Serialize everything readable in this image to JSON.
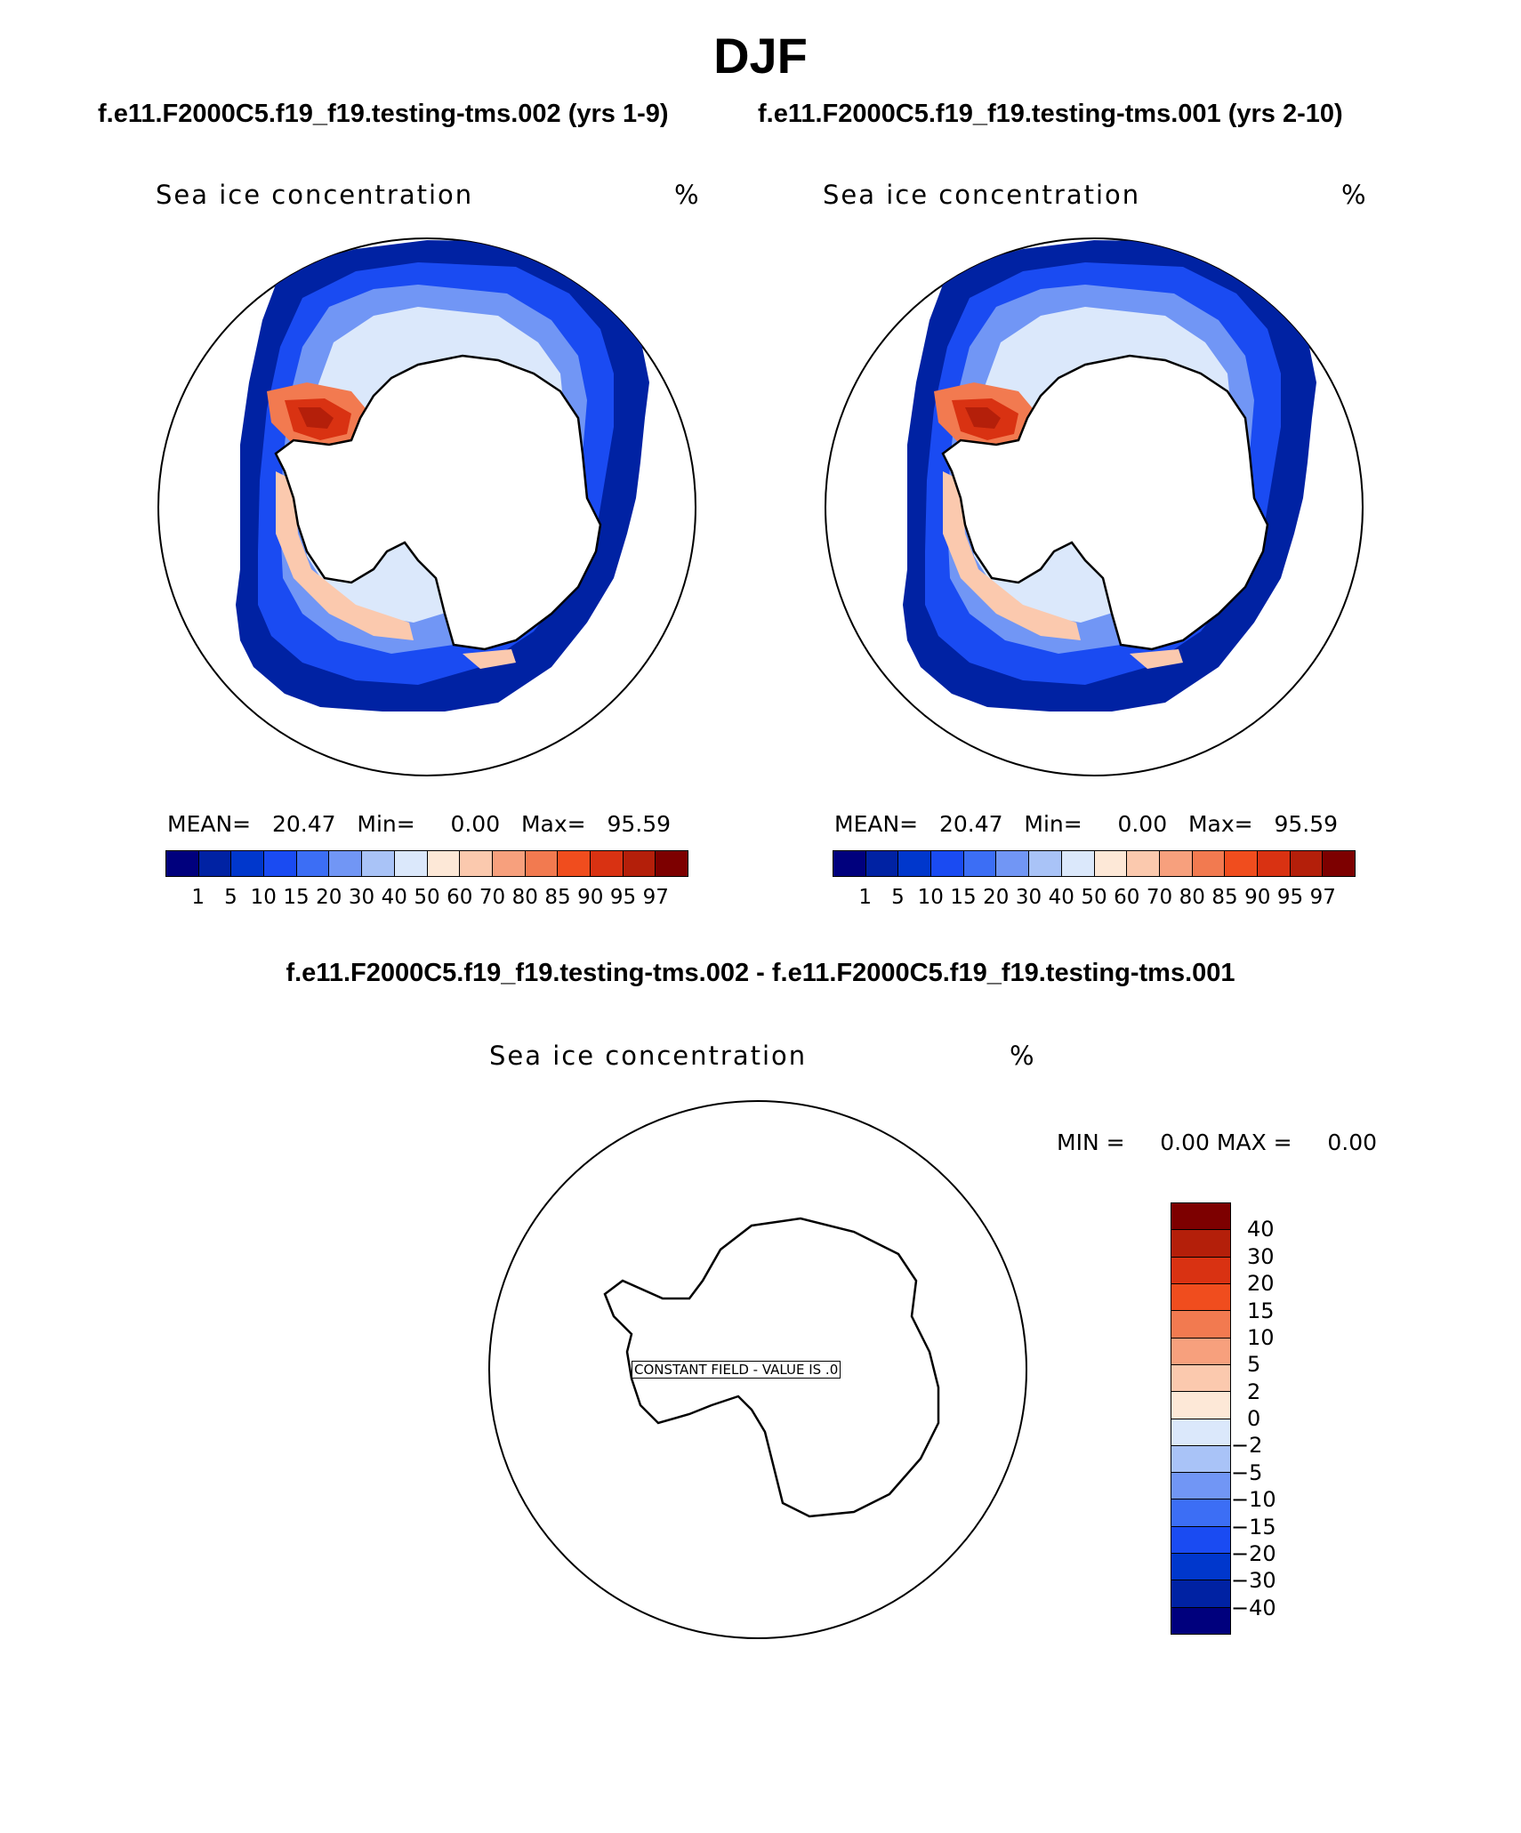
{
  "page": {
    "season": "DJF",
    "left_run_title": "f.e11.F2000C5.f19_f19.testing-tms.002 (yrs 1-9)",
    "right_run_title": "f.e11.F2000C5.f19_f19.testing-tms.001 (yrs 2-10)",
    "diff_title": "f.e11.F2000C5.f19_f19.testing-tms.002 - f.e11.F2000C5.f19_f19.testing-tms.001"
  },
  "panels": {
    "left": {
      "variable": "Sea ice concentration",
      "units": "%",
      "mean_label": "MEAN=",
      "mean_value": "20.47",
      "min_label": "Min=",
      "min_value": "0.00",
      "max_label": "Max=",
      "max_value": "95.59"
    },
    "right": {
      "variable": "Sea ice concentration",
      "units": "%",
      "mean_label": "MEAN=",
      "mean_value": "20.47",
      "min_label": "Min=",
      "min_value": "0.00",
      "max_label": "Max=",
      "max_value": "95.59"
    },
    "diff": {
      "variable": "Sea ice concentration",
      "units": "%",
      "min_label": "MIN =",
      "min_value": "0.00",
      "max_label": "MAX =",
      "max_value": "0.00",
      "constant_text": "CONSTANT FIELD - VALUE IS .0"
    }
  },
  "colors": {
    "abs_scale": [
      "#00007d",
      "#0022a3",
      "#0037cc",
      "#1a4bf2",
      "#3c6ef5",
      "#7196f5",
      "#a9c3f7",
      "#dbe8fb",
      "#fde8d7",
      "#fbc9ae",
      "#f7a07d",
      "#f27a50",
      "#f04d1e",
      "#d93212",
      "#b41f0a",
      "#7d0000"
    ],
    "diff_scale_top_to_bottom": [
      "#7d0000",
      "#b41f0a",
      "#d93212",
      "#f04d1e",
      "#f27a50",
      "#f7a07d",
      "#fbc9ae",
      "#fde8d7",
      "#dbe8fb",
      "#a9c3f7",
      "#7196f5",
      "#3c6ef5",
      "#1a4bf2",
      "#0037cc",
      "#0022a3",
      "#00007d"
    ]
  },
  "chart_data": [
    {
      "type": "heatmap",
      "title": "Sea ice concentration",
      "subtitle": "f.e11.F2000C5.f19_f19.testing-tms.002 (yrs 1-9)",
      "projection": "south polar stereographic",
      "units": "%",
      "mean": 20.47,
      "min": 0.0,
      "max": 95.59,
      "colorbar_levels": [
        "1",
        "5",
        "10",
        "15",
        "20",
        "30",
        "40",
        "50",
        "60",
        "70",
        "80",
        "85",
        "90",
        "95",
        "97"
      ]
    },
    {
      "type": "heatmap",
      "title": "Sea ice concentration",
      "subtitle": "f.e11.F2000C5.f19_f19.testing-tms.001 (yrs 2-10)",
      "projection": "south polar stereographic",
      "units": "%",
      "mean": 20.47,
      "min": 0.0,
      "max": 95.59,
      "colorbar_levels": [
        "1",
        "5",
        "10",
        "15",
        "20",
        "30",
        "40",
        "50",
        "60",
        "70",
        "80",
        "85",
        "90",
        "95",
        "97"
      ]
    },
    {
      "type": "heatmap",
      "title": "Sea ice concentration",
      "subtitle": "f.e11.F2000C5.f19_f19.testing-tms.002 - f.e11.F2000C5.f19_f19.testing-tms.001",
      "projection": "south polar stereographic",
      "units": "%",
      "min": 0.0,
      "max": 0.0,
      "constant_value": 0.0,
      "colorbar_levels": [
        "40",
        "30",
        "20",
        "15",
        "10",
        "5",
        "2",
        "0",
        "−2",
        "−5",
        "−10",
        "−15",
        "−20",
        "−30",
        "−40"
      ]
    }
  ]
}
